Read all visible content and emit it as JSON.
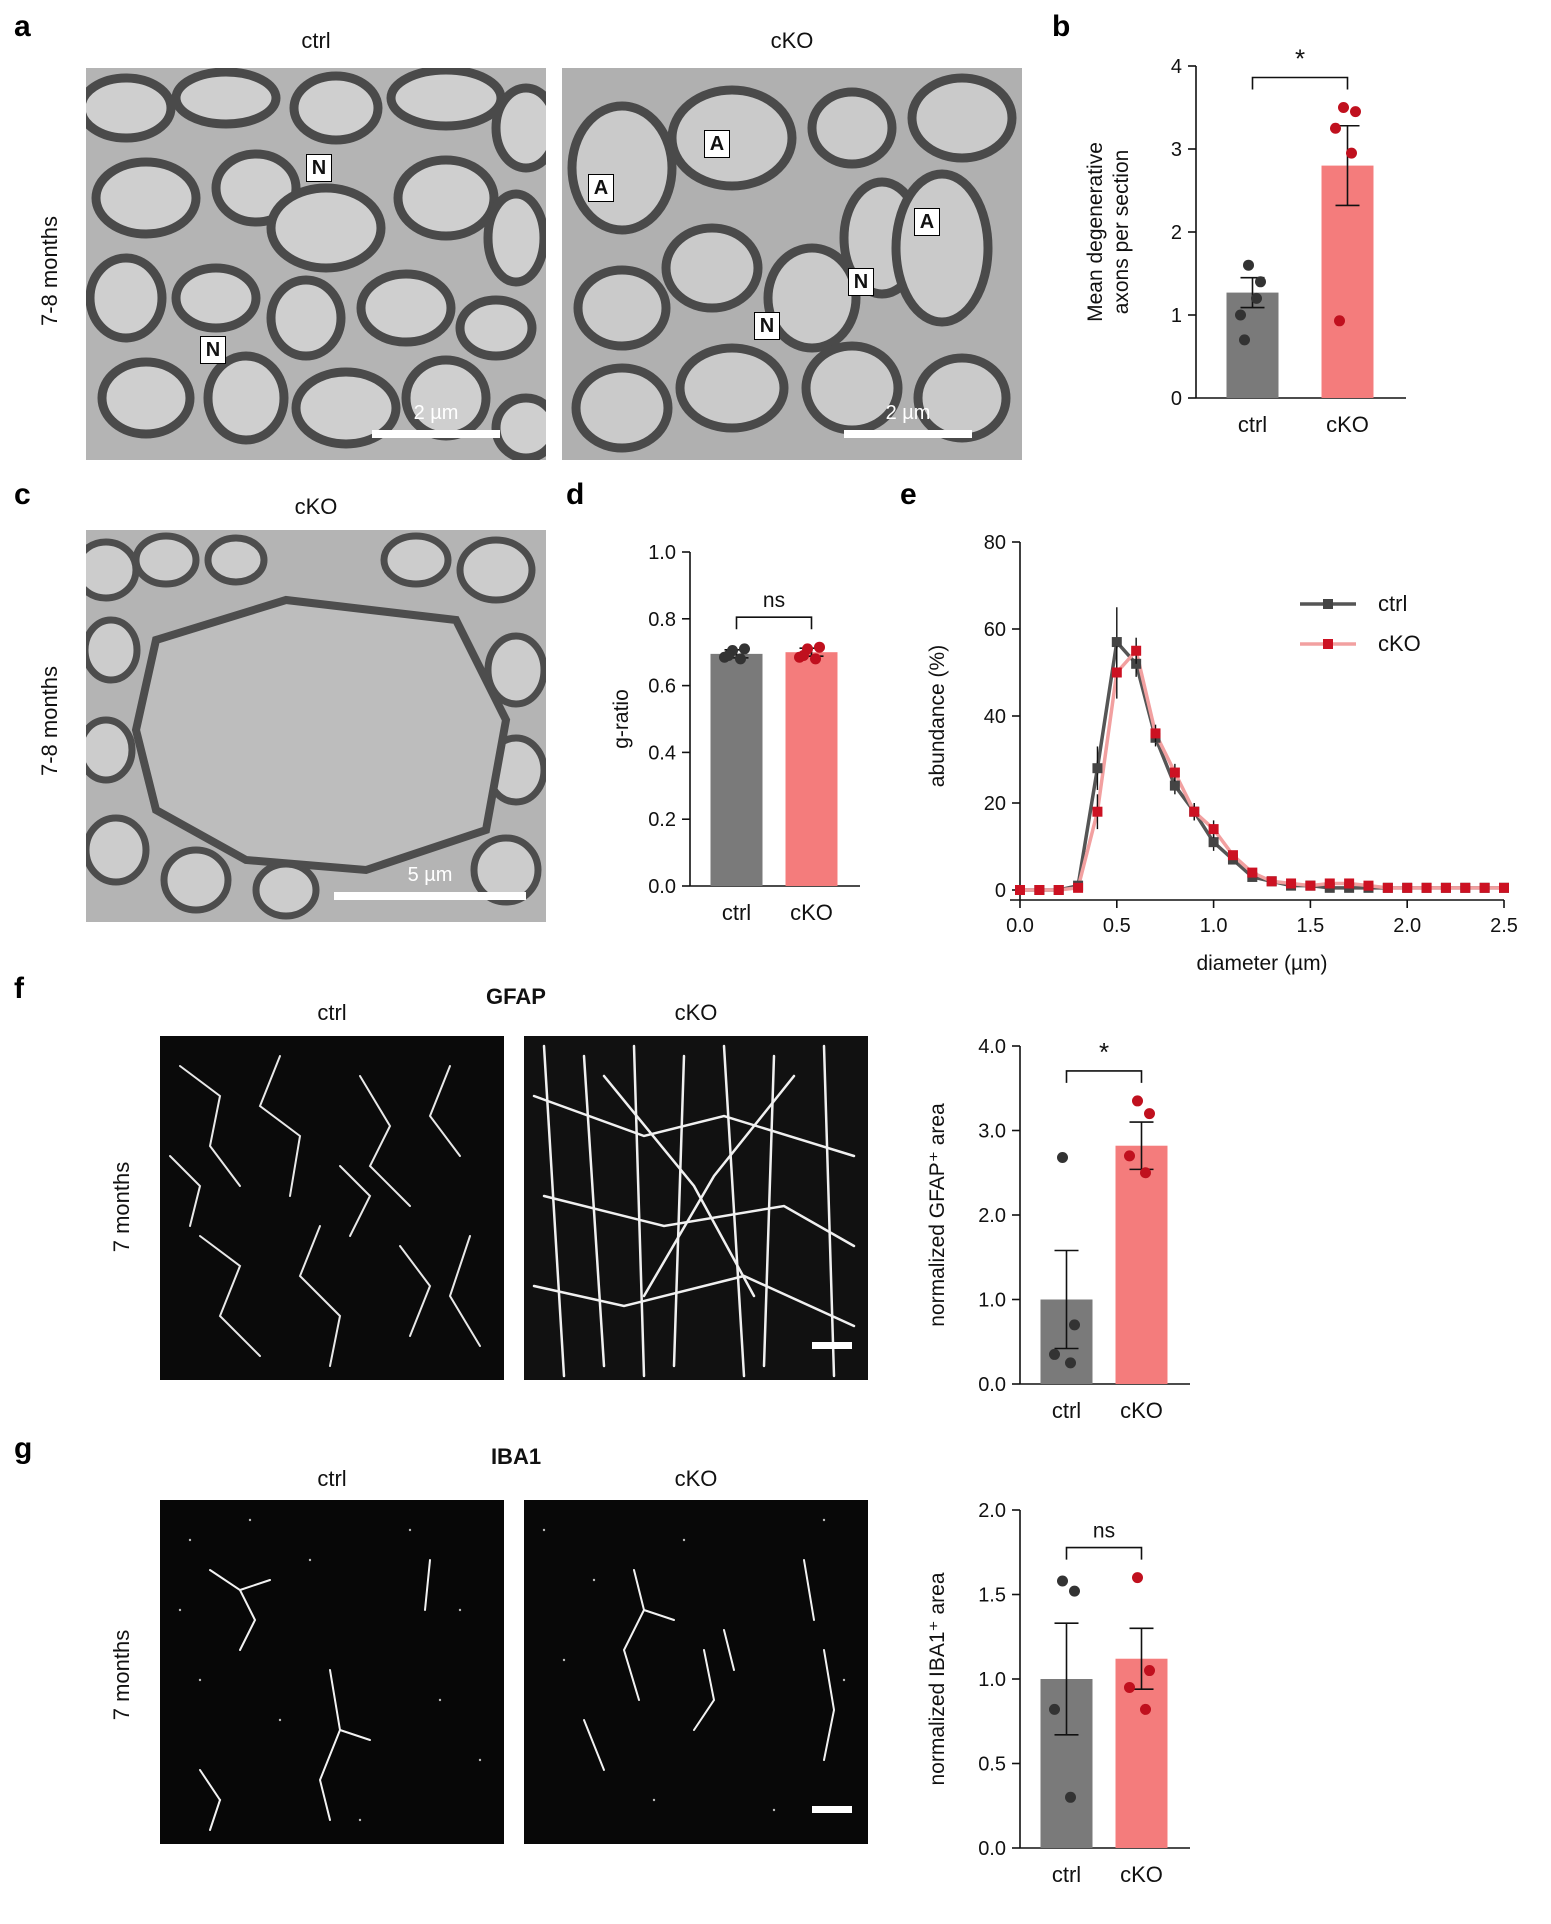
{
  "panels": {
    "a": {
      "letter": "a",
      "row_label": "7-8 months",
      "left": {
        "title": "ctrl",
        "scale_label": "2 µm",
        "markers": [
          "N",
          "N"
        ]
      },
      "right": {
        "title": "cKO",
        "scale_label": "2 µm",
        "markers": [
          "A",
          "A",
          "A",
          "N",
          "N"
        ]
      }
    },
    "b": {
      "letter": "b"
    },
    "c": {
      "letter": "c",
      "row_label": "7-8 months",
      "title": "cKO",
      "scale_label": "5 µm"
    },
    "d": {
      "letter": "d"
    },
    "e": {
      "letter": "e"
    },
    "f": {
      "letter": "f",
      "stain": "GFAP",
      "row_label": "7 months",
      "left_title": "ctrl",
      "right_title": "cKO"
    },
    "g": {
      "letter": "g",
      "stain": "IBA1",
      "row_label": "7 months",
      "left_title": "ctrl",
      "right_title": "cKO"
    }
  },
  "colors": {
    "ctrl": "#7a7a7a",
    "cKO": "#f47c7c",
    "ctrl_dot": "#333333",
    "cKO_dot": "#c0101e",
    "ctrl_line": "#555555",
    "cKO_line": "#f2a0a0",
    "ctrl_marker": "#444444",
    "cKO_marker": "#cc1122"
  },
  "chart_data": [
    {
      "id": "b",
      "type": "bar",
      "categories": [
        "ctrl",
        "cKO"
      ],
      "values": [
        1.27,
        2.8
      ],
      "errors": [
        0.18,
        0.48
      ],
      "points": [
        [
          1.6,
          1.4,
          1.0,
          1.2,
          0.7
        ],
        [
          3.5,
          3.45,
          3.25,
          2.95,
          0.93
        ]
      ],
      "ylabel": [
        "Mean degenerative",
        "axons per section"
      ],
      "ylim": [
        0,
        4
      ],
      "yticks": [
        "0",
        "1",
        "2",
        "3",
        "4"
      ],
      "significance": "*"
    },
    {
      "id": "d",
      "type": "bar",
      "categories": [
        "ctrl",
        "cKO"
      ],
      "values": [
        0.695,
        0.7
      ],
      "errors": [
        0.012,
        0.012
      ],
      "points": [
        [
          0.705,
          0.71,
          0.685,
          0.68,
          0.69
        ],
        [
          0.71,
          0.715,
          0.685,
          0.68,
          0.69
        ]
      ],
      "ylabel": [
        "g-ratio"
      ],
      "ylim": [
        0,
        1.0
      ],
      "yticks": [
        "0.0",
        "0.2",
        "0.4",
        "0.6",
        "0.8",
        "1.0"
      ],
      "significance": "ns"
    },
    {
      "id": "e",
      "type": "line",
      "xlabel": "diameter (µm)",
      "ylabel": "abundance (%)",
      "xlim": [
        0,
        2.5
      ],
      "ylim": [
        0,
        80
      ],
      "xticks": [
        "0.0",
        "0.5",
        "1.0",
        "1.5",
        "2.0",
        "2.5"
      ],
      "yticks": [
        "0",
        "20",
        "40",
        "60",
        "80"
      ],
      "x": [
        0,
        0.1,
        0.2,
        0.3,
        0.4,
        0.5,
        0.6,
        0.7,
        0.8,
        0.9,
        1.0,
        1.1,
        1.2,
        1.3,
        1.4,
        1.5,
        1.6,
        1.7,
        1.8,
        1.9,
        2.0,
        2.1,
        2.2,
        2.3,
        2.4,
        2.5
      ],
      "series": [
        {
          "name": "ctrl",
          "values": [
            0,
            0,
            0,
            1,
            28,
            57,
            52,
            35,
            24,
            18,
            11,
            7,
            3,
            2,
            1,
            1,
            0.5,
            0.5,
            0.5,
            0.5,
            0.5,
            0.5,
            0.5,
            0.5,
            0.5,
            0.5
          ],
          "errors": [
            0,
            0,
            0,
            1,
            5,
            8,
            3,
            2,
            2,
            2,
            2,
            1,
            1,
            0.5,
            0.5,
            0.5,
            0.3,
            0.3,
            0.3,
            0.3,
            0.3,
            0.3,
            0.3,
            0.3,
            0.3,
            0.3
          ]
        },
        {
          "name": "cKO",
          "values": [
            0,
            0,
            0,
            0.5,
            18,
            50,
            55,
            36,
            27,
            18,
            14,
            8,
            4,
            2,
            1.5,
            1,
            1.5,
            1.5,
            1,
            0.5,
            0.5,
            0.5,
            0.5,
            0.5,
            0.5,
            0.5
          ],
          "errors": [
            0,
            0,
            0,
            0.5,
            4,
            6,
            3,
            2,
            2,
            2,
            2,
            1,
            1,
            0.5,
            0.5,
            0.5,
            0.5,
            0.5,
            0.3,
            0.3,
            0.3,
            0.3,
            0.3,
            0.3,
            0.3,
            0.3
          ]
        }
      ],
      "legend": "top-right"
    },
    {
      "id": "f",
      "type": "bar",
      "categories": [
        "ctrl",
        "cKO"
      ],
      "values": [
        1.0,
        2.82
      ],
      "errors": [
        0.58,
        0.28
      ],
      "points": [
        [
          2.68,
          0.7,
          0.35,
          0.25
        ],
        [
          3.35,
          3.2,
          2.7,
          2.5
        ]
      ],
      "ylabel": [
        "normalized GFAP⁺ area"
      ],
      "ylim": [
        0,
        4.0
      ],
      "yticks": [
        "0.0",
        "1.0",
        "2.0",
        "3.0",
        "4.0"
      ],
      "significance": "*"
    },
    {
      "id": "g",
      "type": "bar",
      "categories": [
        "ctrl",
        "cKO"
      ],
      "values": [
        1.0,
        1.12
      ],
      "errors": [
        0.33,
        0.18
      ],
      "points": [
        [
          1.58,
          1.52,
          0.82,
          0.3
        ],
        [
          1.6,
          1.05,
          0.95,
          0.82
        ]
      ],
      "ylabel": [
        "normalized IBA1⁺ area"
      ],
      "ylim": [
        0,
        2.0
      ],
      "yticks": [
        "0.0",
        "0.5",
        "1.0",
        "1.5",
        "2.0"
      ],
      "significance": "ns"
    }
  ]
}
